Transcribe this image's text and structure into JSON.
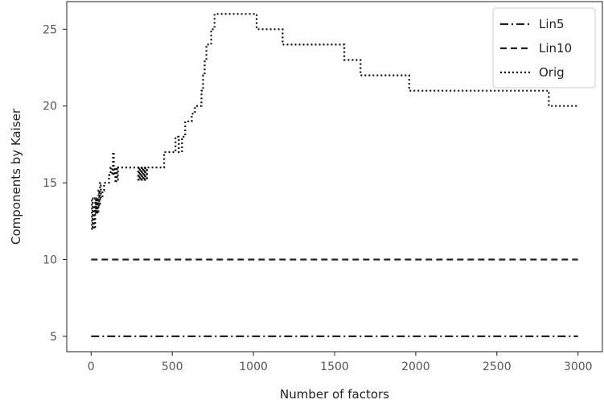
{
  "chart_data": {
    "type": "line",
    "title": "",
    "xlabel": "Number of factors",
    "ylabel": "Components by Kaiser",
    "xlim": [
      -150,
      3150
    ],
    "ylim": [
      4.0,
      26.8
    ],
    "xticks": [
      0,
      500,
      1000,
      1500,
      2000,
      2500,
      3000
    ],
    "yticks": [
      5,
      10,
      15,
      20,
      25
    ],
    "legend_position": "top-right",
    "grid": false,
    "series": [
      {
        "name": "Lin5",
        "style": "dashdot",
        "color": "#222222",
        "x": [
          0,
          3000
        ],
        "y": [
          5,
          5
        ]
      },
      {
        "name": "Lin10",
        "style": "dashed",
        "color": "#222222",
        "x": [
          0,
          3000
        ],
        "y": [
          10,
          10
        ]
      },
      {
        "name": "Orig",
        "style": "dotted",
        "color": "#111111",
        "x": [
          0,
          5,
          10,
          15,
          20,
          25,
          30,
          35,
          40,
          45,
          50,
          55,
          60,
          70,
          80,
          90,
          100,
          110,
          120,
          130,
          135,
          140,
          145,
          150,
          155,
          160,
          165,
          170,
          180,
          200,
          250,
          290,
          295,
          300,
          305,
          310,
          315,
          320,
          325,
          330,
          335,
          340,
          345,
          350,
          400,
          450,
          500,
          520,
          540,
          560,
          580,
          600,
          620,
          640,
          660,
          680,
          690,
          700,
          710,
          720,
          740,
          760,
          800,
          1000,
          1020,
          1040,
          1100,
          1180,
          1300,
          1520,
          1560,
          1600,
          1660,
          1700,
          1800,
          1900,
          1960,
          2000,
          2200,
          2400,
          2600,
          2800,
          2820,
          2900,
          3000
        ],
        "y": [
          12,
          14,
          12,
          13.5,
          12,
          14,
          13,
          14,
          13,
          14.5,
          13.5,
          15,
          14,
          14.5,
          15,
          15,
          15,
          15.5,
          16,
          15.5,
          17,
          15.5,
          16,
          15,
          16,
          15.2,
          16,
          16,
          16,
          16,
          16,
          15.2,
          16,
          15.2,
          16,
          15.2,
          16,
          15.2,
          16,
          15.2,
          16,
          15.2,
          16,
          16,
          16,
          17,
          17,
          18,
          17,
          18,
          19,
          19,
          19.5,
          20,
          20,
          21,
          22,
          23,
          24,
          24,
          25,
          26,
          26,
          26,
          25,
          25,
          25,
          24,
          24,
          24,
          23,
          23,
          22,
          22,
          22,
          22,
          21,
          21,
          21,
          21,
          21,
          21,
          20,
          20,
          20
        ]
      }
    ]
  }
}
